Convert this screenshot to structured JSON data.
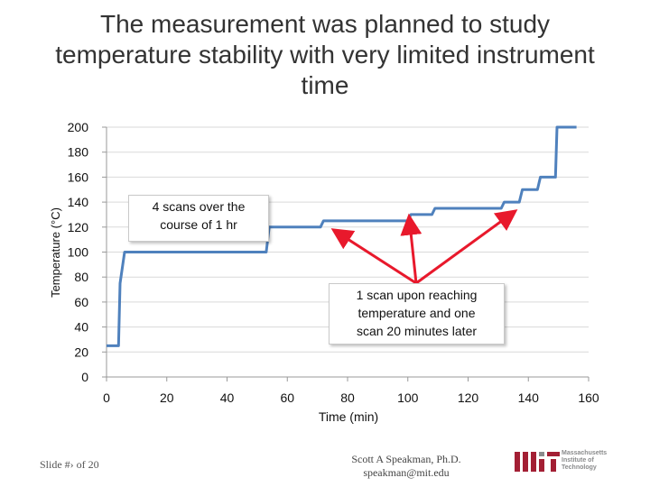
{
  "slide": {
    "title": "The measurement was planned to study temperature stability with very limited instrument time",
    "footer_left": "Slide #› of 20",
    "footer_author": "Scott A Speakman, Ph.D.",
    "footer_email": "speakman@mit.edu",
    "logo_text": "Massachusetts\nInstitute of\nTechnology"
  },
  "callouts": {
    "scans_hour": "4 scans over the\ncourse of 1 hr",
    "scan_reaching": "1 scan upon reaching\ntemperature and one\nscan 20 minutes later"
  },
  "colors": {
    "series": "#4f81bd",
    "arrow": "#e8192c",
    "grid": "#d9d9d9",
    "mit_red": "#a31f34",
    "mit_grey": "#8a8b8c"
  },
  "chart_data": {
    "type": "line",
    "title": "",
    "xlabel": "Time (min)",
    "ylabel": "Temperature (°C)",
    "xlim": [
      0,
      160
    ],
    "ylim": [
      0,
      200
    ],
    "x_ticks": [
      0,
      20,
      40,
      60,
      80,
      100,
      120,
      140,
      160
    ],
    "y_ticks": [
      0,
      20,
      40,
      60,
      80,
      100,
      120,
      140,
      160,
      180,
      200
    ],
    "grid": "horizontal",
    "series": [
      {
        "name": "",
        "x": [
          0,
          4,
          4.5,
          6,
          53,
          54,
          71,
          72,
          100,
          101,
          108,
          109,
          131,
          132,
          137,
          138,
          143,
          144,
          149,
          149.5,
          150,
          156
        ],
        "y": [
          25,
          25,
          75,
          100,
          100,
          120,
          120,
          125,
          125,
          130,
          130,
          135,
          135,
          140,
          140,
          150,
          150,
          160,
          160,
          200,
          200,
          200
        ]
      }
    ]
  }
}
